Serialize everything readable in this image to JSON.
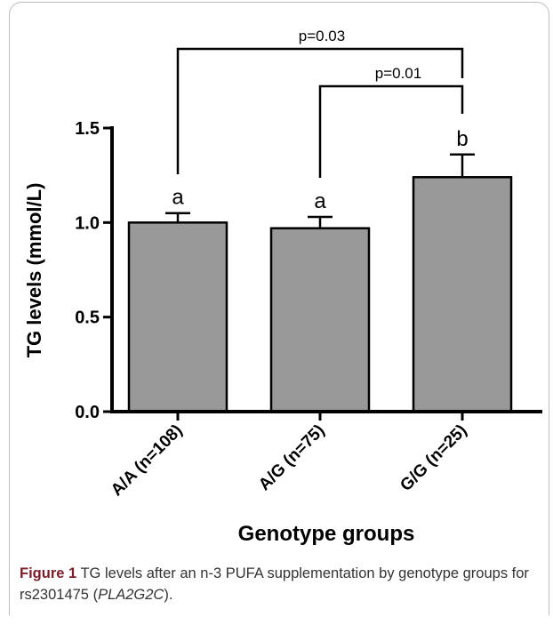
{
  "chart_data": {
    "type": "bar",
    "categories": [
      "A/A (n=108)",
      "A/G (n=75)",
      "G/G (n=25)"
    ],
    "values": [
      1.0,
      0.97,
      1.24
    ],
    "errors": [
      0.05,
      0.06,
      0.12
    ],
    "letters": [
      "a",
      "a",
      "b"
    ],
    "ylabel": "TG levels (mmol/L)",
    "xlabel": "Genotype groups",
    "ylim": [
      0.0,
      1.5
    ],
    "yticks": [
      "0.0",
      "0.5",
      "1.0",
      "1.5"
    ],
    "comparisons": [
      {
        "from": 0,
        "to": 2,
        "label": "p=0.03"
      },
      {
        "from": 1,
        "to": 2,
        "label": "p=0.01"
      }
    ],
    "bar_color": "#999999"
  },
  "caption": {
    "label": "Figure 1",
    "text_before": " TG levels after an n-3 PUFA supplementation by genotype groups for rs2301475 (",
    "gene": "PLA2G2C",
    "text_after": ")."
  }
}
